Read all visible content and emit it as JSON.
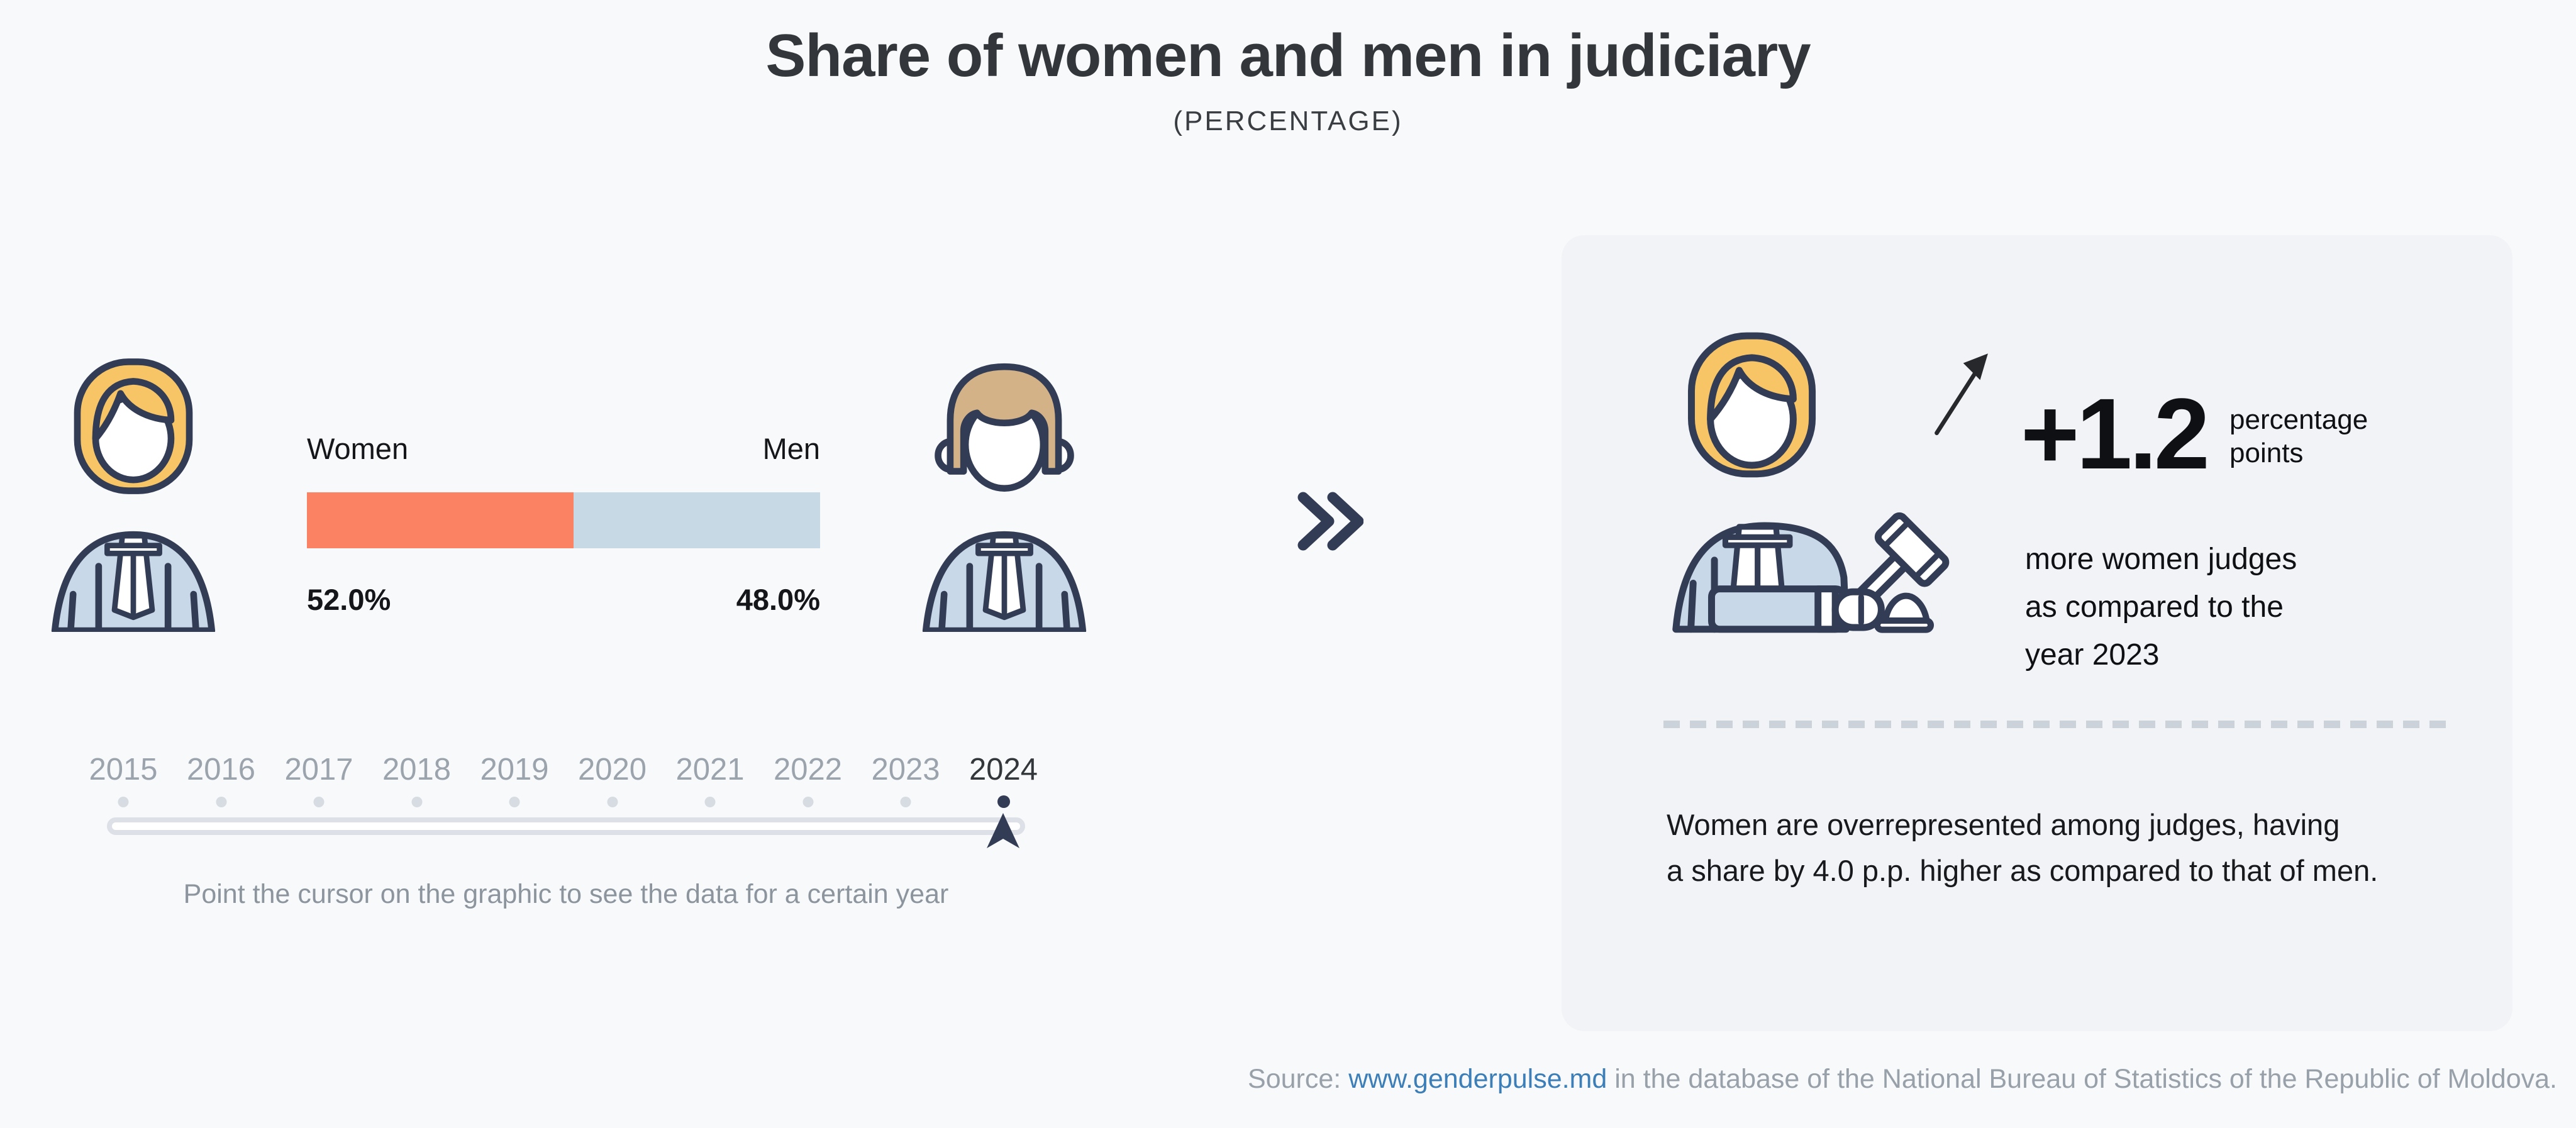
{
  "page": {
    "title": "Share of women and men in judiciary",
    "subtitle": "(PERCENTAGE)"
  },
  "colors": {
    "page_bg": "#F8F9FA",
    "panel_bg": "#F1F3F6",
    "women_bar": "#FB8263",
    "men_bar": "#C8D9E6",
    "outline_navy": "#333C55",
    "hair_woman": "#F7C566",
    "hair_man": "#D3B287",
    "robe_blue": "#C9D8E8",
    "text_dark": "#33373B",
    "year_inactive": "#9BA3AC",
    "track_gray": "#DDE1E7",
    "dot_gray": "#D7DCE2",
    "divider_gray": "#CBD2D9",
    "link_blue": "#3C7EB7",
    "footer_gray": "#98A1AA"
  },
  "chart_data": {
    "type": "bar",
    "title": "Share of women and men in judiciary",
    "subtitle": "(PERCENTAGE)",
    "categories": [
      "Women",
      "Men"
    ],
    "values": [
      52.0,
      48.0
    ],
    "value_labels": [
      "52.0%",
      "48.0%"
    ],
    "unit": "percent",
    "series_colors": [
      "#FB8263",
      "#C8D9E6"
    ],
    "timeline_years": [
      "2015",
      "2016",
      "2017",
      "2018",
      "2019",
      "2020",
      "2021",
      "2022",
      "2023",
      "2024"
    ],
    "selected_year": "2024",
    "yoy_change_pp": 1.2,
    "women_men_gap_pp": 4.0
  },
  "bar": {
    "women_label": "Women",
    "men_label": "Men",
    "women_value": "52.0%",
    "men_value": "48.0%"
  },
  "timeline": {
    "years": [
      "2015",
      "2016",
      "2017",
      "2018",
      "2019",
      "2020",
      "2021",
      "2022",
      "2023",
      "2024"
    ],
    "selected": "2024",
    "hint": "Point the cursor on the graphic to see the data for a certain year"
  },
  "panel": {
    "delta_value": "+1.2",
    "delta_unit_line1": "percentage",
    "delta_unit_line2": "points",
    "description_lines": [
      "more women judges",
      "as compared to the",
      "year 2023"
    ],
    "note_lines": [
      "Women are overrepresented among judges, having",
      "a share by 4.0 p.p. higher as compared to that of men."
    ]
  },
  "footer": {
    "prefix": "Source: ",
    "link_text": "www.genderpulse.md",
    "suffix": " in the database of the National Bureau of Statistics of the Republic of Moldova."
  }
}
